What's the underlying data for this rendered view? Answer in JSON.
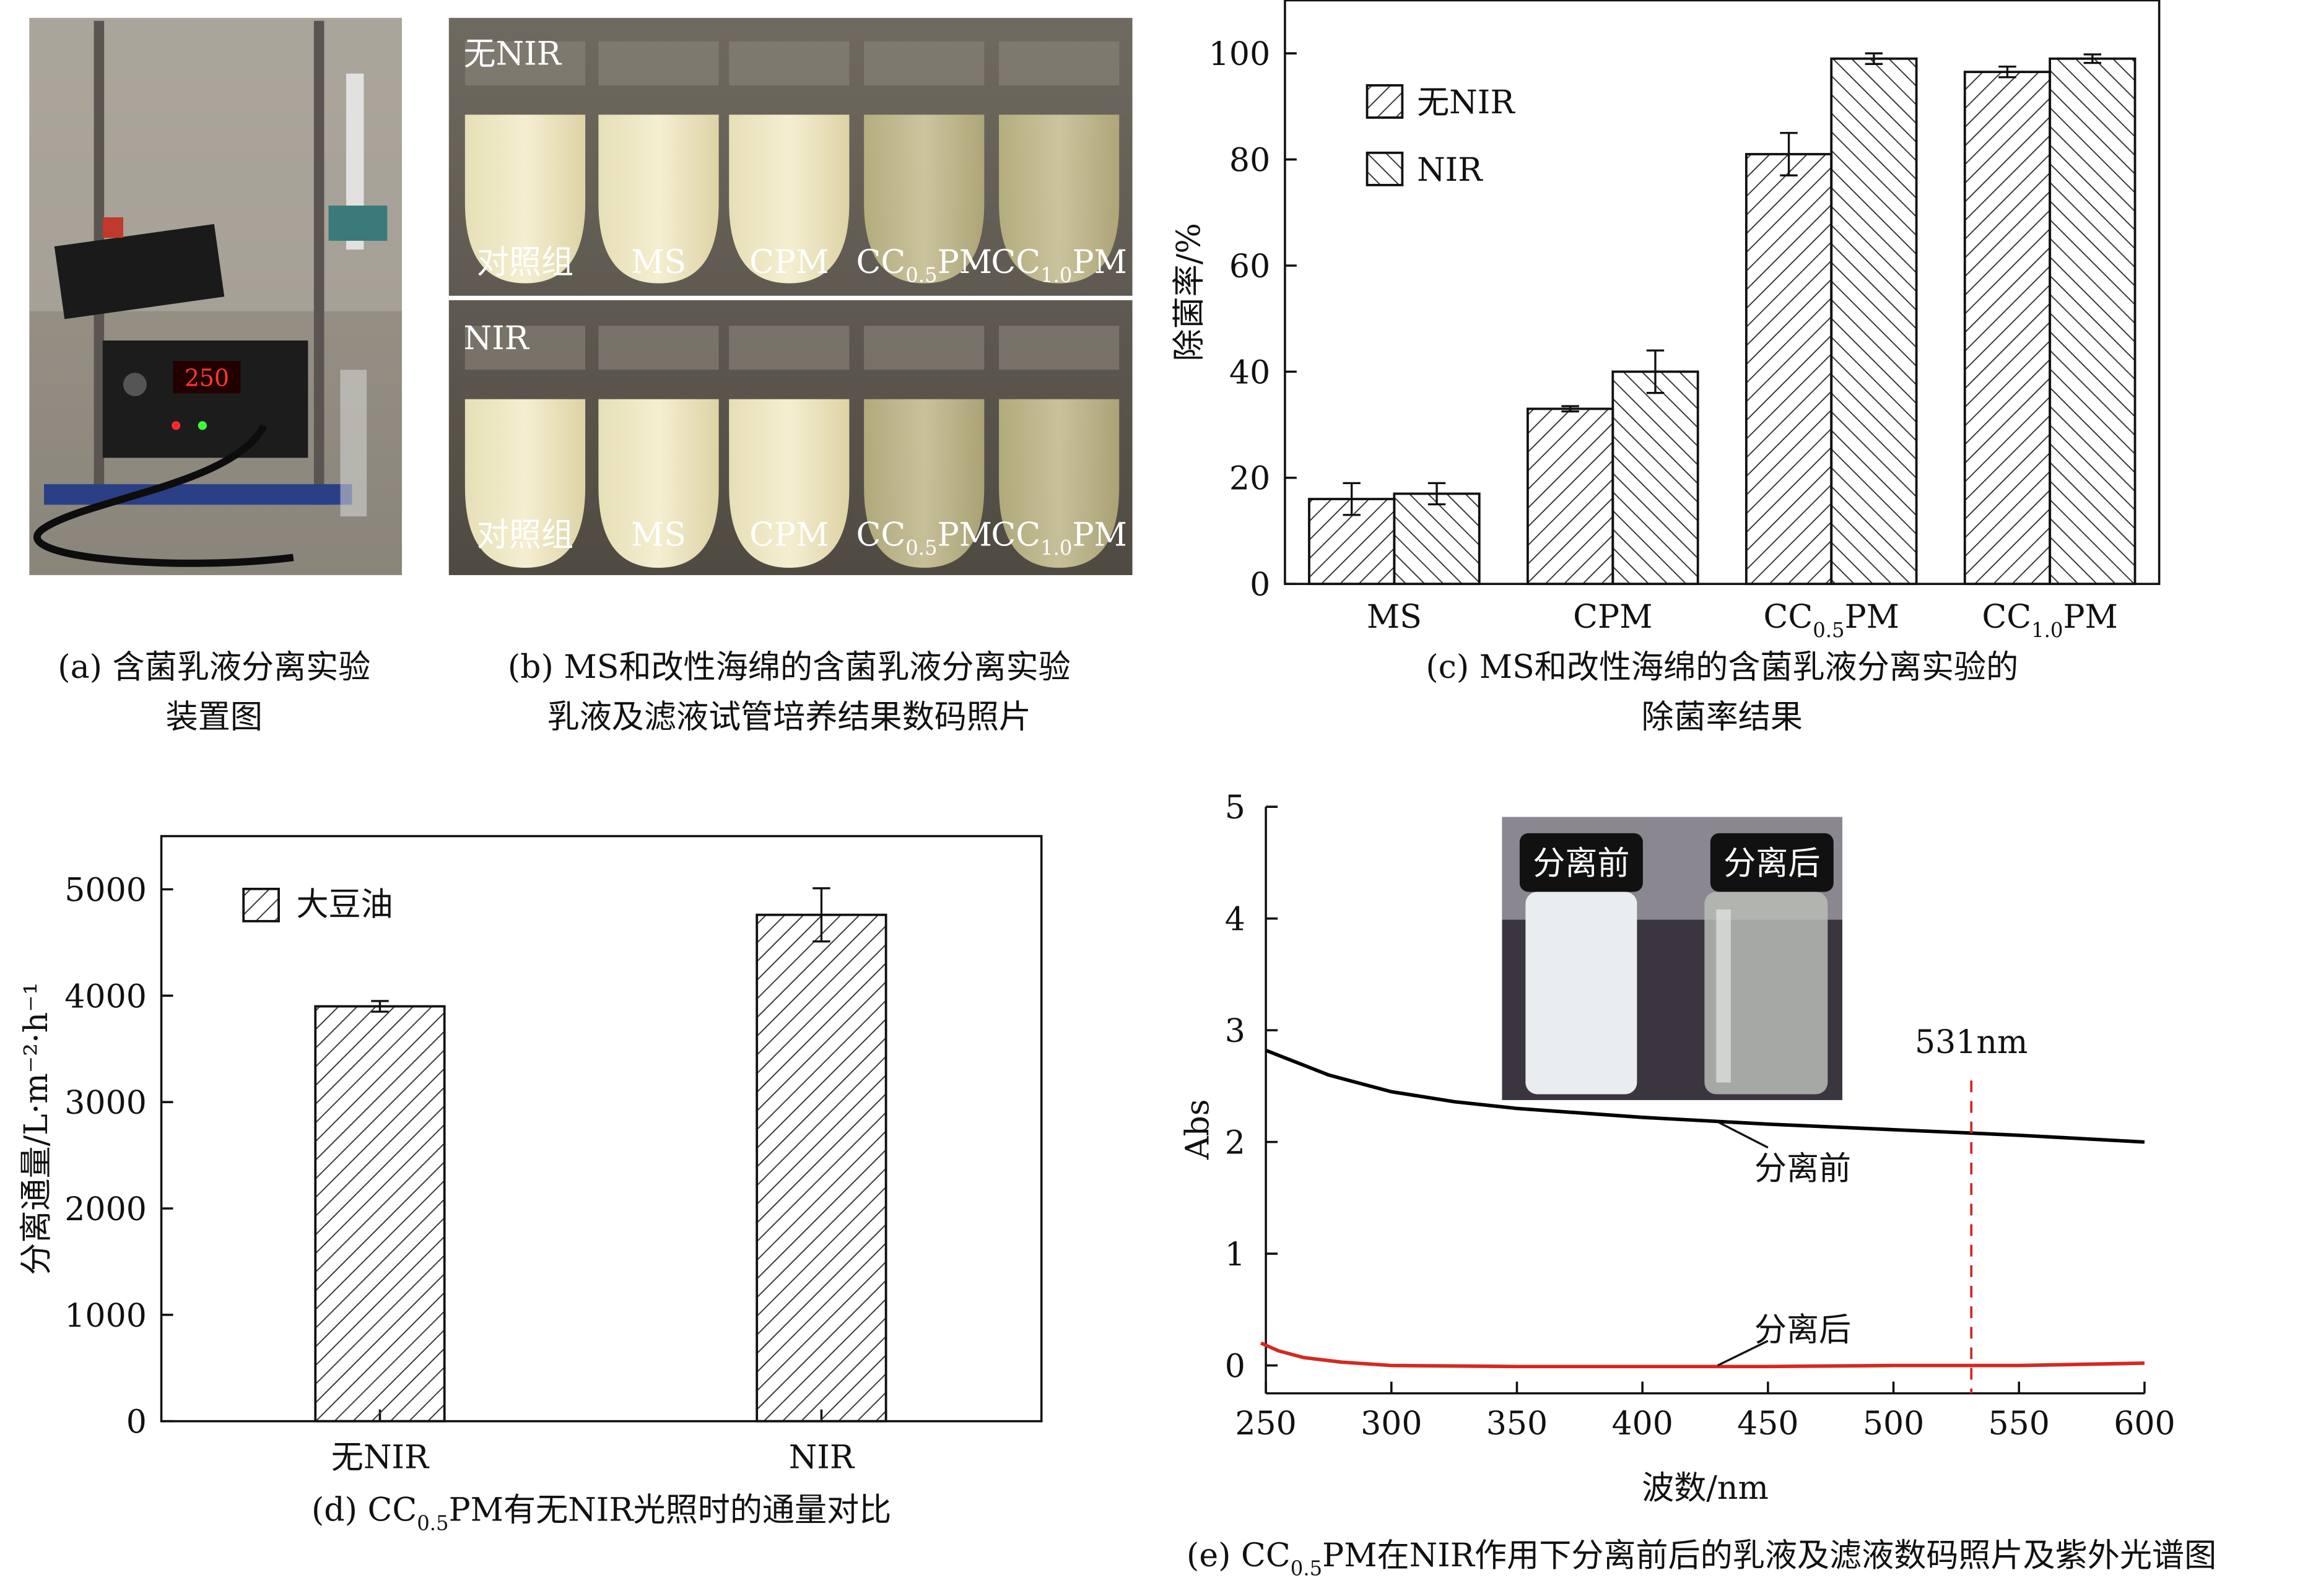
{
  "panel_a": {
    "caption_line1": "(a) 含菌乳液分离实验",
    "caption_line2": "装置图",
    "display_value": "250"
  },
  "panel_b": {
    "row1_label": "无NIR",
    "row2_label": "NIR",
    "tube_labels": [
      "对照组",
      "MS",
      "CPM",
      "CC0.5PM",
      "CC1.0PM"
    ],
    "caption_line1": "(b) MS和改性海绵的含菌乳液分离实验",
    "caption_line2": "乳液及滤液试管培养结果数码照片"
  },
  "panel_e_photo": {
    "cap_before": "分离前",
    "cap_after": "分离后"
  },
  "chart_data": [
    {
      "id": "c",
      "type": "bar",
      "caption_line1": "(c) MS和改性海绵的含菌乳液分离实验的",
      "caption_line2": "除菌率结果",
      "categories": [
        "MS",
        "CPM",
        "CC0.5PM",
        "CC1.0PM"
      ],
      "series": [
        {
          "name": "无NIR",
          "values": [
            16,
            33,
            81,
            96.5
          ],
          "errors": [
            3,
            0.5,
            4,
            1
          ]
        },
        {
          "name": "NIR",
          "values": [
            17,
            40,
            99,
            99
          ],
          "errors": [
            2,
            4,
            1,
            0.8
          ]
        }
      ],
      "ylabel": "除菌率/%",
      "ylim": [
        0,
        110
      ],
      "yticks": [
        0,
        20,
        40,
        60,
        80,
        100
      ],
      "legend": "top-left"
    },
    {
      "id": "d",
      "type": "bar",
      "caption": "(d) CC0.5PM有无NIR光照时的通量对比",
      "categories": [
        "无NIR",
        "NIR"
      ],
      "values": [
        3900,
        4760
      ],
      "errors": [
        50,
        250
      ],
      "series_name": "大豆油",
      "ylabel": "分离通量/L·m⁻²·h⁻¹",
      "ylim": [
        0,
        5500
      ],
      "yticks": [
        0,
        1000,
        2000,
        3000,
        4000,
        5000
      ],
      "legend": "top-left"
    },
    {
      "id": "e",
      "type": "line",
      "caption": "(e) CC0.5PM在NIR作用下分离前后的乳液及滤液数码照片及紫外光谱图",
      "xlabel": "波数/nm",
      "ylabel": "Abs",
      "xlim": [
        250,
        600
      ],
      "ylim": [
        -0.25,
        5
      ],
      "xticks": [
        250,
        300,
        350,
        400,
        450,
        500,
        550,
        600
      ],
      "yticks": [
        0,
        1,
        2,
        3,
        4,
        5
      ],
      "series": [
        {
          "name": "分离前",
          "color": "#000000",
          "x": [
            250,
            275,
            300,
            325,
            350,
            400,
            450,
            500,
            531,
            550,
            600
          ],
          "y": [
            2.82,
            2.6,
            2.45,
            2.36,
            2.3,
            2.22,
            2.16,
            2.11,
            2.08,
            2.06,
            2.0
          ]
        },
        {
          "name": "分离后",
          "color": "#d22a22",
          "x": [
            248,
            255,
            265,
            280,
            300,
            350,
            400,
            450,
            500,
            550,
            600
          ],
          "y": [
            0.2,
            0.13,
            0.07,
            0.03,
            0.0,
            -0.01,
            -0.01,
            -0.01,
            0.0,
            0.0,
            0.02
          ]
        }
      ],
      "marker": {
        "x": 531,
        "label": "531nm",
        "color": "#d22a22"
      }
    }
  ]
}
